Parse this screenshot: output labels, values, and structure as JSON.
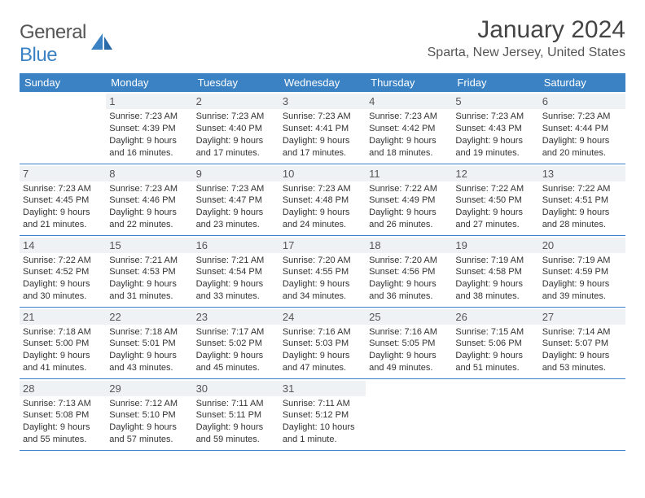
{
  "brand": {
    "text_gray": "General",
    "text_blue": "Blue"
  },
  "title": "January 2024",
  "location": "Sparta, New Jersey, United States",
  "colors": {
    "header_bg": "#3b82c4",
    "daynum_bg": "#eef2f5",
    "rule": "#3b82c4"
  },
  "daysOfWeek": [
    "Sunday",
    "Monday",
    "Tuesday",
    "Wednesday",
    "Thursday",
    "Friday",
    "Saturday"
  ],
  "weeks": [
    [
      null,
      {
        "n": "1",
        "sr": "7:23 AM",
        "ss": "4:39 PM",
        "dl": "9 hours and 16 minutes."
      },
      {
        "n": "2",
        "sr": "7:23 AM",
        "ss": "4:40 PM",
        "dl": "9 hours and 17 minutes."
      },
      {
        "n": "3",
        "sr": "7:23 AM",
        "ss": "4:41 PM",
        "dl": "9 hours and 17 minutes."
      },
      {
        "n": "4",
        "sr": "7:23 AM",
        "ss": "4:42 PM",
        "dl": "9 hours and 18 minutes."
      },
      {
        "n": "5",
        "sr": "7:23 AM",
        "ss": "4:43 PM",
        "dl": "9 hours and 19 minutes."
      },
      {
        "n": "6",
        "sr": "7:23 AM",
        "ss": "4:44 PM",
        "dl": "9 hours and 20 minutes."
      }
    ],
    [
      {
        "n": "7",
        "sr": "7:23 AM",
        "ss": "4:45 PM",
        "dl": "9 hours and 21 minutes."
      },
      {
        "n": "8",
        "sr": "7:23 AM",
        "ss": "4:46 PM",
        "dl": "9 hours and 22 minutes."
      },
      {
        "n": "9",
        "sr": "7:23 AM",
        "ss": "4:47 PM",
        "dl": "9 hours and 23 minutes."
      },
      {
        "n": "10",
        "sr": "7:23 AM",
        "ss": "4:48 PM",
        "dl": "9 hours and 24 minutes."
      },
      {
        "n": "11",
        "sr": "7:22 AM",
        "ss": "4:49 PM",
        "dl": "9 hours and 26 minutes."
      },
      {
        "n": "12",
        "sr": "7:22 AM",
        "ss": "4:50 PM",
        "dl": "9 hours and 27 minutes."
      },
      {
        "n": "13",
        "sr": "7:22 AM",
        "ss": "4:51 PM",
        "dl": "9 hours and 28 minutes."
      }
    ],
    [
      {
        "n": "14",
        "sr": "7:22 AM",
        "ss": "4:52 PM",
        "dl": "9 hours and 30 minutes."
      },
      {
        "n": "15",
        "sr": "7:21 AM",
        "ss": "4:53 PM",
        "dl": "9 hours and 31 minutes."
      },
      {
        "n": "16",
        "sr": "7:21 AM",
        "ss": "4:54 PM",
        "dl": "9 hours and 33 minutes."
      },
      {
        "n": "17",
        "sr": "7:20 AM",
        "ss": "4:55 PM",
        "dl": "9 hours and 34 minutes."
      },
      {
        "n": "18",
        "sr": "7:20 AM",
        "ss": "4:56 PM",
        "dl": "9 hours and 36 minutes."
      },
      {
        "n": "19",
        "sr": "7:19 AM",
        "ss": "4:58 PM",
        "dl": "9 hours and 38 minutes."
      },
      {
        "n": "20",
        "sr": "7:19 AM",
        "ss": "4:59 PM",
        "dl": "9 hours and 39 minutes."
      }
    ],
    [
      {
        "n": "21",
        "sr": "7:18 AM",
        "ss": "5:00 PM",
        "dl": "9 hours and 41 minutes."
      },
      {
        "n": "22",
        "sr": "7:18 AM",
        "ss": "5:01 PM",
        "dl": "9 hours and 43 minutes."
      },
      {
        "n": "23",
        "sr": "7:17 AM",
        "ss": "5:02 PM",
        "dl": "9 hours and 45 minutes."
      },
      {
        "n": "24",
        "sr": "7:16 AM",
        "ss": "5:03 PM",
        "dl": "9 hours and 47 minutes."
      },
      {
        "n": "25",
        "sr": "7:16 AM",
        "ss": "5:05 PM",
        "dl": "9 hours and 49 minutes."
      },
      {
        "n": "26",
        "sr": "7:15 AM",
        "ss": "5:06 PM",
        "dl": "9 hours and 51 minutes."
      },
      {
        "n": "27",
        "sr": "7:14 AM",
        "ss": "5:07 PM",
        "dl": "9 hours and 53 minutes."
      }
    ],
    [
      {
        "n": "28",
        "sr": "7:13 AM",
        "ss": "5:08 PM",
        "dl": "9 hours and 55 minutes."
      },
      {
        "n": "29",
        "sr": "7:12 AM",
        "ss": "5:10 PM",
        "dl": "9 hours and 57 minutes."
      },
      {
        "n": "30",
        "sr": "7:11 AM",
        "ss": "5:11 PM",
        "dl": "9 hours and 59 minutes."
      },
      {
        "n": "31",
        "sr": "7:11 AM",
        "ss": "5:12 PM",
        "dl": "10 hours and 1 minute."
      },
      null,
      null,
      null
    ]
  ],
  "labels": {
    "sunrise": "Sunrise:",
    "sunset": "Sunset:",
    "daylight": "Daylight:"
  }
}
